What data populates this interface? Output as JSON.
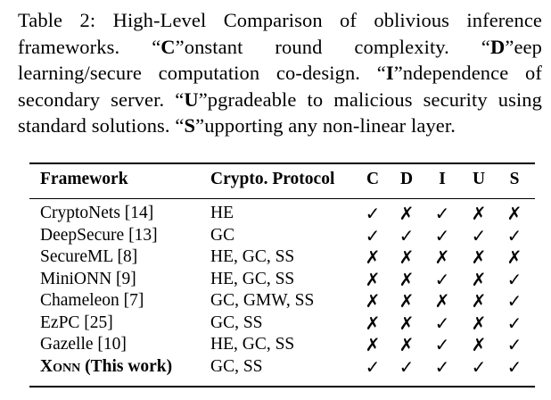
{
  "caption": {
    "label": "Table 2:",
    "title": "High-Level Comparison of oblivious inference frameworks.",
    "items": [
      {
        "key": "C",
        "text": "onstant round complexity."
      },
      {
        "key": "D",
        "text": "eep learning/secure computation co-design."
      },
      {
        "key": "I",
        "text": "ndependence of secondary server."
      },
      {
        "key": "U",
        "text": "pgradeable to malicious security using standard solutions."
      },
      {
        "key": "S",
        "text": "upporting any non-linear layer."
      }
    ]
  },
  "table": {
    "headers": {
      "framework": "Framework",
      "protocol": "Crypto. Protocol",
      "c": "C",
      "d": "D",
      "i": "I",
      "u": "U",
      "s": "S"
    },
    "check_symbol": "✓",
    "cross_symbol": "✗",
    "rows": [
      {
        "framework": "CryptoNets [14]",
        "protocol": "HE",
        "marks": [
          1,
          0,
          1,
          0,
          0
        ],
        "bold": false
      },
      {
        "framework": "DeepSecure [13]",
        "protocol": "GC",
        "marks": [
          1,
          1,
          1,
          1,
          1
        ],
        "bold": false
      },
      {
        "framework": "SecureML [8]",
        "protocol": "HE, GC, SS",
        "marks": [
          0,
          0,
          0,
          0,
          0
        ],
        "bold": false
      },
      {
        "framework": "MiniONN [9]",
        "protocol": "HE, GC, SS",
        "marks": [
          0,
          0,
          1,
          0,
          1
        ],
        "bold": false
      },
      {
        "framework": "Chameleon [7]",
        "protocol": "GC, GMW, SS",
        "marks": [
          0,
          0,
          0,
          0,
          1
        ],
        "bold": false
      },
      {
        "framework": "EzPC [25]",
        "protocol": "GC, SS",
        "marks": [
          0,
          0,
          1,
          0,
          1
        ],
        "bold": false
      },
      {
        "framework": "Gazelle [10]",
        "protocol": "HE, GC, SS",
        "marks": [
          0,
          0,
          1,
          0,
          1
        ],
        "bold": false
      },
      {
        "framework": "XONN (This work)",
        "protocol": "GC, SS",
        "marks": [
          1,
          1,
          1,
          1,
          1
        ],
        "bold": true
      }
    ]
  }
}
